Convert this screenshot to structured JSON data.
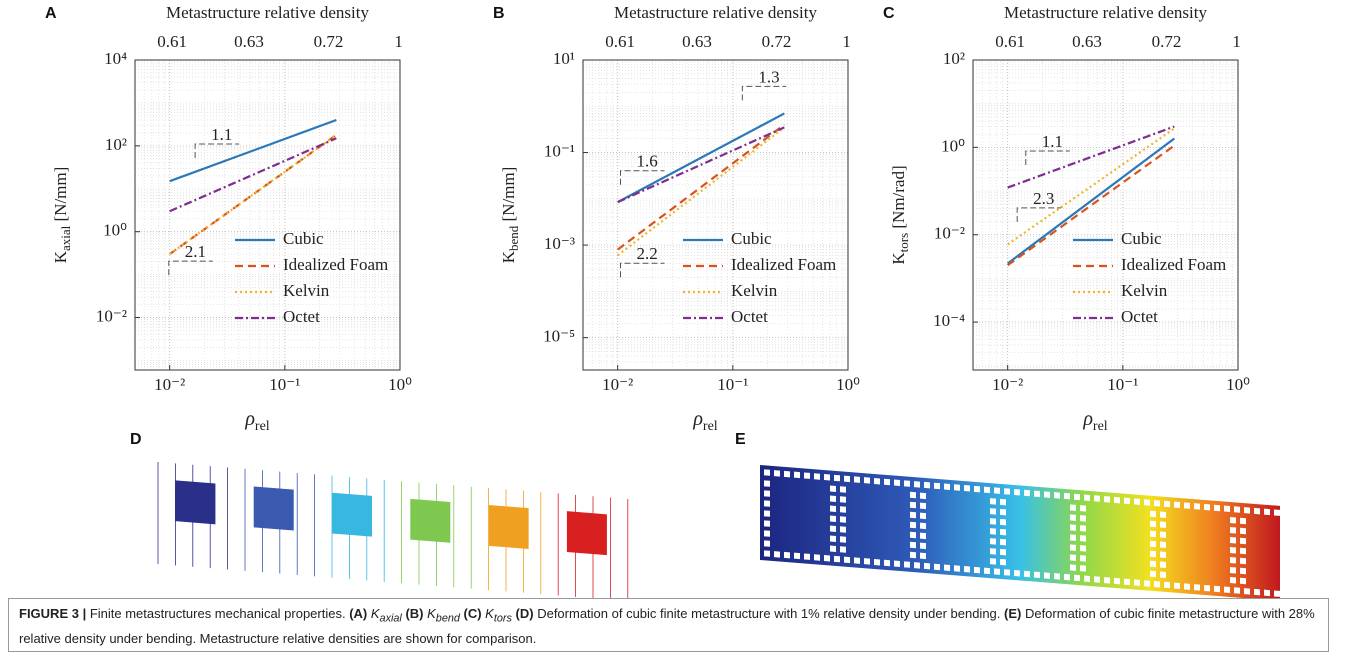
{
  "chart_data": [
    {
      "type": "line",
      "panel": "A",
      "x2label": "Metastructure relative density",
      "x2ticks": [
        0.61,
        0.63,
        0.72,
        1
      ],
      "ylabel": "K",
      "ylabel_sub": "axial",
      "ylabel_unit": " [N/mm]",
      "xlabel": "ρ",
      "xlabel_sub": "rel",
      "log_x": true,
      "log_y": true,
      "grid": true,
      "minor_grid": true,
      "legend": "lower right",
      "xlim": [
        0.005,
        1
      ],
      "xticks": [
        {
          "value": 0.01,
          "label": "10⁻²"
        },
        {
          "value": 0.1,
          "label": "10⁻¹"
        },
        {
          "value": 1,
          "label": "10⁰"
        }
      ],
      "ylim": [
        0.0006,
        10000
      ],
      "yticks": [
        {
          "value": 10000,
          "label": "10⁴"
        },
        {
          "value": 100,
          "label": "10²"
        },
        {
          "value": 1,
          "label": "10⁰"
        },
        {
          "value": 0.01,
          "label": "10⁻²"
        }
      ],
      "x": [
        0.01,
        0.28
      ],
      "series": [
        {
          "name": "Cubic",
          "color": "#2a78b8",
          "dash": "solid",
          "values": [
            15,
            400
          ]
        },
        {
          "name": "Idealized Foam",
          "color": "#d9531e",
          "dash": "dashed",
          "values": [
            0.3,
            180
          ]
        },
        {
          "name": "Kelvin",
          "color": "#f0b429",
          "dash": "dotted",
          "values": [
            0.3,
            180
          ]
        },
        {
          "name": "Octet",
          "color": "#7e2f8e",
          "dash": "dashdot",
          "values": [
            3,
            150
          ]
        }
      ],
      "annotations": [
        {
          "text": "1.1",
          "x": 0.022,
          "y": 80
        },
        {
          "text": "2.1",
          "x": 0.013,
          "y": 0.15
        }
      ]
    },
    {
      "type": "line",
      "panel": "B",
      "x2label": "Metastructure relative density",
      "x2ticks": [
        0.61,
        0.63,
        0.72,
        1
      ],
      "ylabel": "K",
      "ylabel_sub": "bend",
      "ylabel_unit": " [N/mm]",
      "xlabel": "ρ",
      "xlabel_sub": "rel",
      "log_x": true,
      "log_y": true,
      "grid": true,
      "minor_grid": true,
      "legend": "lower right",
      "xlim": [
        0.005,
        1
      ],
      "xticks": [
        {
          "value": 0.01,
          "label": "10⁻²"
        },
        {
          "value": 0.1,
          "label": "10⁻¹"
        },
        {
          "value": 1,
          "label": "10⁰"
        }
      ],
      "ylim": [
        2e-06,
        10
      ],
      "yticks": [
        {
          "value": 10,
          "label": "10¹"
        },
        {
          "value": 0.1,
          "label": "10⁻¹"
        },
        {
          "value": 0.001,
          "label": "10⁻³"
        },
        {
          "value": 1e-05,
          "label": "10⁻⁵"
        }
      ],
      "x": [
        0.01,
        0.28
      ],
      "series": [
        {
          "name": "Cubic",
          "color": "#2a78b8",
          "dash": "solid",
          "values": [
            0.0085,
            0.7
          ]
        },
        {
          "name": "Idealized Foam",
          "color": "#d9531e",
          "dash": "dashed",
          "values": [
            0.0008,
            0.4
          ]
        },
        {
          "name": "Kelvin",
          "color": "#f0b429",
          "dash": "dotted",
          "values": [
            0.0006,
            0.35
          ]
        },
        {
          "name": "Octet",
          "color": "#7e2f8e",
          "dash": "dashdot",
          "values": [
            0.0085,
            0.35
          ]
        }
      ],
      "annotations": [
        {
          "text": "1.6",
          "x": 0.014,
          "y": 0.03
        },
        {
          "text": "1.3",
          "x": 0.16,
          "y": 2
        },
        {
          "text": "2.2",
          "x": 0.014,
          "y": 0.0003
        }
      ]
    },
    {
      "type": "line",
      "panel": "C",
      "x2label": "Metastructure relative density",
      "x2ticks": [
        0.61,
        0.63,
        0.72,
        1
      ],
      "ylabel": "K",
      "ylabel_sub": "tors",
      "ylabel_unit": " [Nm/rad]",
      "xlabel": "ρ",
      "xlabel_sub": "rel",
      "log_x": true,
      "log_y": true,
      "grid": true,
      "minor_grid": true,
      "legend": "lower right",
      "xlim": [
        0.005,
        1
      ],
      "xticks": [
        {
          "value": 0.01,
          "label": "10⁻²"
        },
        {
          "value": 0.1,
          "label": "10⁻¹"
        },
        {
          "value": 1,
          "label": "10⁰"
        }
      ],
      "ylim": [
        8e-06,
        100
      ],
      "yticks": [
        {
          "value": 100,
          "label": "10²"
        },
        {
          "value": 1,
          "label": "10⁰"
        },
        {
          "value": 0.01,
          "label": "10⁻²"
        },
        {
          "value": 0.0001,
          "label": "10⁻⁴"
        }
      ],
      "x": [
        0.01,
        0.28
      ],
      "series": [
        {
          "name": "Cubic",
          "color": "#2a78b8",
          "dash": "solid",
          "values": [
            0.0022,
            1.6
          ]
        },
        {
          "name": "Idealized Foam",
          "color": "#d9531e",
          "dash": "dashed",
          "values": [
            0.002,
            1.1
          ]
        },
        {
          "name": "Kelvin",
          "color": "#f0b429",
          "dash": "dotted",
          "values": [
            0.006,
            2.7
          ]
        },
        {
          "name": "Octet",
          "color": "#7e2f8e",
          "dash": "dashdot",
          "values": [
            0.12,
            3
          ]
        }
      ],
      "annotations": [
        {
          "text": "1.1",
          "x": 0.019,
          "y": 0.6
        },
        {
          "text": "2.3",
          "x": 0.016,
          "y": 0.03
        }
      ]
    }
  ],
  "panels": [
    "D",
    "E"
  ],
  "caption": [
    {
      "text": "FIGURE 3 |",
      "bold": true
    },
    {
      "text": " Finite metastructures mechanical properties. "
    },
    {
      "text": "(A)",
      "bold": true
    },
    {
      "text": " K",
      "italic": true
    },
    {
      "text": "axial",
      "italic": true,
      "sub": true
    },
    {
      "text": " (B)",
      "bold": true
    },
    {
      "text": " K",
      "italic": true
    },
    {
      "text": "bend",
      "italic": true,
      "sub": true
    },
    {
      "text": " (C)",
      "bold": true
    },
    {
      "text": " K",
      "italic": true
    },
    {
      "text": "tors",
      "italic": true,
      "sub": true
    },
    {
      "text": " (D)",
      "bold": true
    },
    {
      "text": " Deformation of cubic finite metastructure with 1% relative density under bending. "
    },
    {
      "text": "(E)",
      "bold": true
    },
    {
      "text": " Deformation of cubic finite metastructure with 28% relative density under bending. Metastructure relative densities are shown for comparison."
    }
  ]
}
